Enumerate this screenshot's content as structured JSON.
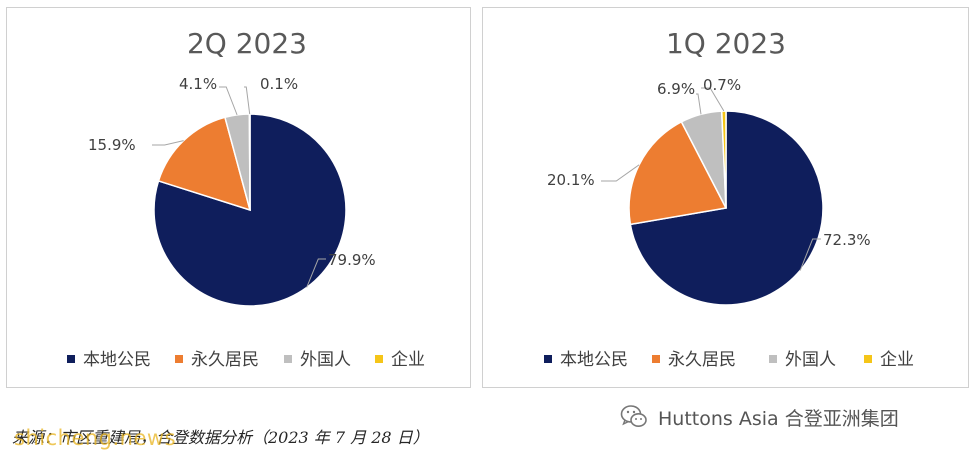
{
  "chart_data": [
    {
      "type": "pie",
      "title": "2Q 2023",
      "categories": [
        "本地公民",
        "永久居民",
        "外国人",
        "企业"
      ],
      "values": [
        79.9,
        15.9,
        4.1,
        0.1
      ],
      "data_labels": [
        "79.9%",
        "15.9%",
        "4.1%",
        "0.1%"
      ],
      "colors": [
        "#0f1e5c",
        "#ed7d31",
        "#bfbfbf",
        "#f5c518"
      ],
      "legend_position": "bottom"
    },
    {
      "type": "pie",
      "title": "1Q 2023",
      "categories": [
        "本地公民",
        "永久居民",
        "外国人",
        "企业"
      ],
      "values": [
        72.3,
        20.1,
        6.9,
        0.7
      ],
      "data_labels": [
        "72.3%",
        "20.1%",
        "6.9%",
        "0.7%"
      ],
      "colors": [
        "#0f1e5c",
        "#ed7d31",
        "#bfbfbf",
        "#f5c518"
      ],
      "legend_position": "bottom"
    }
  ],
  "footer": {
    "source": "来源：市区重建局，合登数据分析（2023 年 7 月 28 日）",
    "brand": "Huttons Asia 合登亚洲集团",
    "watermark": "shicheng.news",
    "brand_icon": "wechat-icon"
  }
}
